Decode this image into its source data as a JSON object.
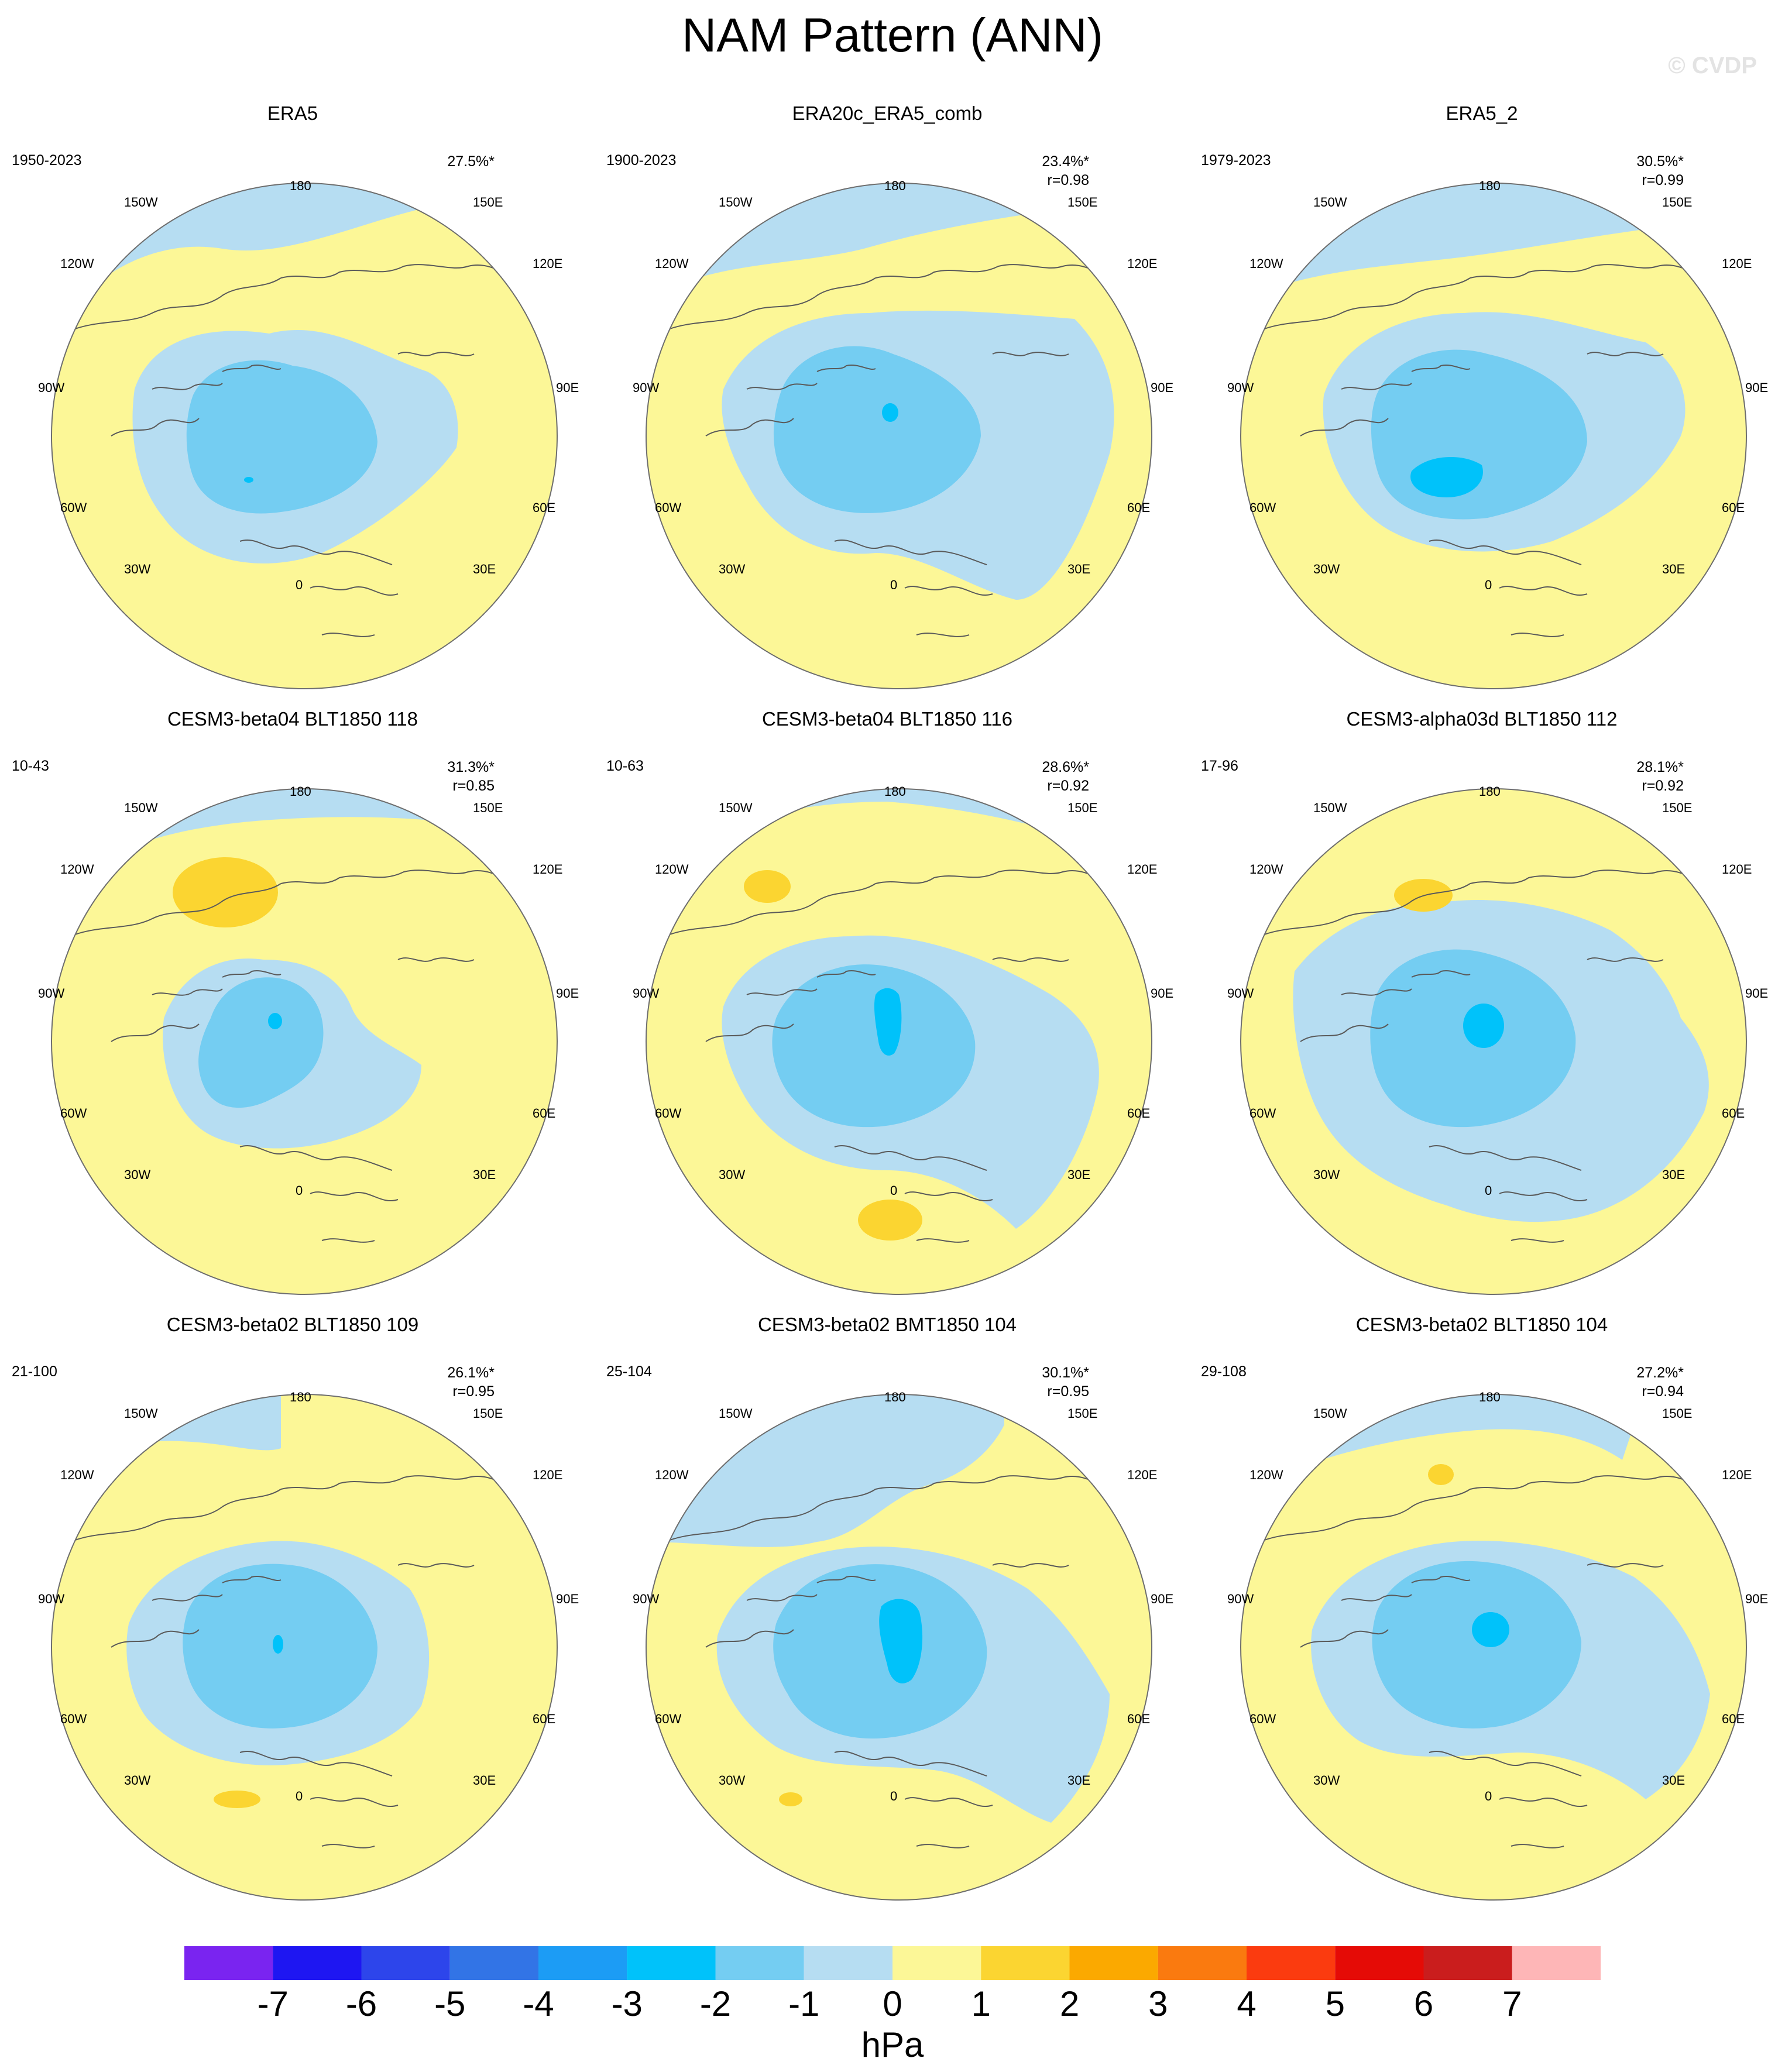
{
  "title": "NAM Pattern (ANN)",
  "watermark": "© CVDP",
  "units": "hPa",
  "colors": {
    "neg7": "#7a24f0",
    "neg6": "#1e16f2",
    "neg5": "#2d45eb",
    "neg4": "#3274e6",
    "neg3": "#1c9cf5",
    "neg2": "#00c2fa",
    "neg1": "#74cdf2",
    "neg0": "#b6ddf2",
    "pos0": "#fcf797",
    "pos1": "#fbd531",
    "pos2": "#fba900",
    "pos3": "#fa7a0f",
    "pos4": "#fb3b0f",
    "pos5": "#e50b06",
    "pos6": "#ca1d1d",
    "pos7": "#feb6b7",
    "coast": "#5a5a5a",
    "rim": "#6e6e6e"
  },
  "colorbar": {
    "labels": [
      "-7",
      "-6",
      "-5",
      "-4",
      "-3",
      "-2",
      "-1",
      "0",
      "1",
      "2",
      "3",
      "4",
      "5",
      "6",
      "7"
    ],
    "colors": [
      "#7a24f0",
      "#1e16f2",
      "#2d45eb",
      "#3274e6",
      "#1c9cf5",
      "#00c2fa",
      "#74cdf2",
      "#b6ddf2",
      "#fcf797",
      "#fbd531",
      "#fba900",
      "#fa7a0f",
      "#fb3b0f",
      "#e50b06",
      "#ca1d1d",
      "#feb6b7"
    ]
  },
  "lon_labels": {
    "n180": "180",
    "n150e": "150E",
    "n120e": "120E",
    "n90e": "90E",
    "n60e": "60E",
    "n30e": "30E",
    "n0": "0",
    "n30w": "30W",
    "n60w": "60W",
    "n90w": "90W",
    "n120w": "120W",
    "n150w": "150W"
  },
  "panels": [
    {
      "title": "ERA5",
      "period": "1950-2023",
      "pct": "27.5%*",
      "r": "",
      "variant": 0
    },
    {
      "title": "ERA20c_ERA5_comb",
      "period": "1900-2023",
      "pct": "23.4%*",
      "r": "r=0.98",
      "variant": 1
    },
    {
      "title": "ERA5_2",
      "period": "1979-2023",
      "pct": "30.5%*",
      "r": "r=0.99",
      "variant": 2
    },
    {
      "title": "CESM3-beta04 BLT1850 118",
      "period": "10-43",
      "pct": "31.3%*",
      "r": "r=0.85",
      "variant": 3
    },
    {
      "title": "CESM3-beta04 BLT1850 116",
      "period": "10-63",
      "pct": "28.6%*",
      "r": "r=0.92",
      "variant": 4
    },
    {
      "title": "CESM3-alpha03d BLT1850 112",
      "period": "17-96",
      "pct": "28.1%*",
      "r": "r=0.92",
      "variant": 5
    },
    {
      "title": "CESM3-beta02 BLT1850 109",
      "period": "21-100",
      "pct": "26.1%*",
      "r": "r=0.95",
      "variant": 6
    },
    {
      "title": "CESM3-beta02 BMT1850 104",
      "period": "25-104",
      "pct": "30.1%*",
      "r": "r=0.95",
      "variant": 7
    },
    {
      "title": "CESM3-beta02 BLT1850 104",
      "period": "29-108",
      "pct": "27.2%*",
      "r": "r=0.94",
      "variant": 8
    }
  ]
}
